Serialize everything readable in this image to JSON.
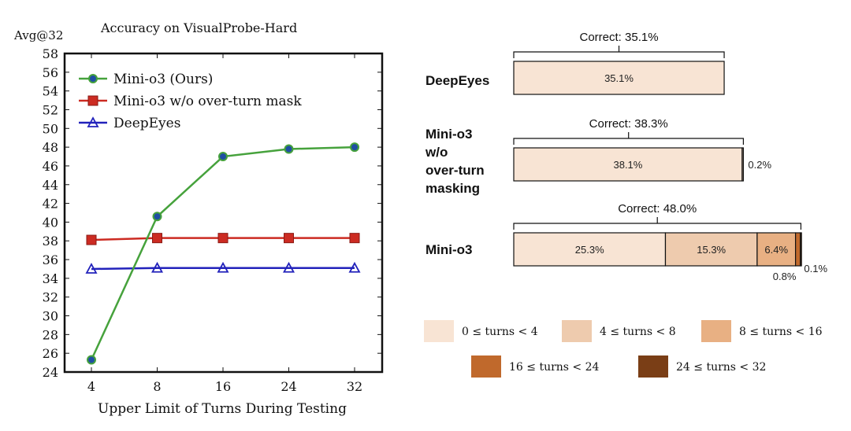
{
  "chart_data": [
    {
      "type": "line",
      "title": "Accuracy on VisualProbe-Hard",
      "ylabel": "Avg@32",
      "xlabel": "Upper Limit of Turns During Testing",
      "categories": [
        "4",
        "8",
        "16",
        "24",
        "32"
      ],
      "ylim": [
        24,
        58
      ],
      "yticks": [
        24,
        26,
        28,
        30,
        32,
        34,
        36,
        38,
        40,
        42,
        44,
        46,
        48,
        50,
        52,
        54,
        56,
        58
      ],
      "legend_position": "top-left",
      "series": [
        {
          "name": "Mini-o3 (Ours)",
          "color": "#46a23c",
          "marker": "circle",
          "marker_fill": "#1f4fa3",
          "values": [
            25.3,
            40.6,
            47.0,
            47.8,
            48.0
          ]
        },
        {
          "name": "Mini-o3 w/o over-turn mask",
          "color": "#cc2b22",
          "marker": "square",
          "marker_fill": "#cc2b22",
          "values": [
            38.1,
            38.3,
            38.3,
            38.3,
            38.3
          ]
        },
        {
          "name": "DeepEyes",
          "color": "#2222bb",
          "marker": "triangle",
          "marker_fill": "#2222bb",
          "values": [
            35.0,
            35.1,
            35.1,
            35.1,
            35.1
          ]
        }
      ]
    },
    {
      "type": "bar",
      "orientation": "horizontal-stacked",
      "categories": [
        {
          "label_lines": [
            "DeepEyes"
          ],
          "correct": "Correct: 35.1%"
        },
        {
          "label_lines": [
            "Mini-o3",
            "w/o",
            "over-turn",
            "masking"
          ],
          "correct": "Correct: 38.3%"
        },
        {
          "label_lines": [
            "Mini-o3"
          ],
          "correct": "Correct: 48.0%"
        }
      ],
      "series": [
        {
          "name": "0 ≤ turns < 4",
          "color": "#f8e4d4",
          "values": [
            35.1,
            38.1,
            25.3
          ],
          "labels": [
            "35.1%",
            "38.1%",
            "25.3%"
          ]
        },
        {
          "name": "4 ≤ turns < 8",
          "color": "#eecbae",
          "values": [
            0,
            0.2,
            15.3
          ],
          "labels": [
            "",
            "0.2%",
            "15.3%"
          ]
        },
        {
          "name": "8 ≤ turns < 16",
          "color": "#e8b083",
          "values": [
            0,
            0,
            6.4
          ],
          "labels": [
            "",
            "",
            "6.4%"
          ]
        },
        {
          "name": "16 ≤ turns < 24",
          "color": "#c0692c",
          "values": [
            0,
            0,
            0.8
          ],
          "labels": [
            "",
            "",
            "0.8%"
          ]
        },
        {
          "name": "24 ≤ turns < 32",
          "color": "#7a3e16",
          "values": [
            0,
            0,
            0.1
          ],
          "labels": [
            "",
            "",
            "0.1%"
          ]
        }
      ],
      "xlim": [
        0,
        48.5
      ],
      "legend_position": "bottom"
    }
  ]
}
